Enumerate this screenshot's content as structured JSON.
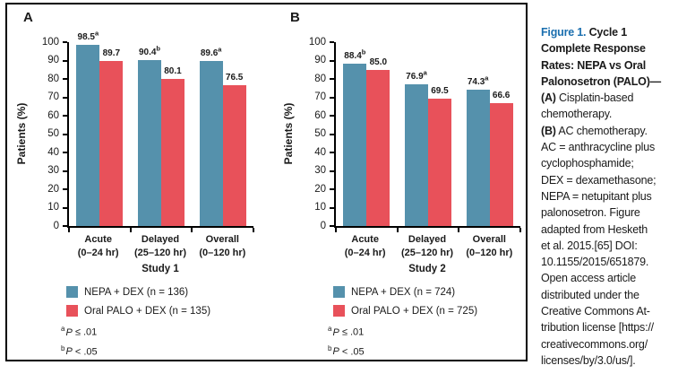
{
  "colors": {
    "nepa_teal": "#5591AC",
    "palo_red": "#E8515A",
    "figure_label_blue": "#1B6FAF",
    "axis_black": "#000000",
    "text": "#1A1A1A"
  },
  "chart_data": [
    {
      "type": "bar",
      "panel_label": "A",
      "ylabel": "Patients (%)",
      "xlabel": "Study 1",
      "ylim": [
        0,
        100
      ],
      "ytick_step": 10,
      "grid": false,
      "legend_position": "below-left",
      "categories": [
        {
          "line1": "Acute",
          "line2": "(0–24 hr)"
        },
        {
          "line1": "Delayed",
          "line2": "(25–120 hr)"
        },
        {
          "line1": "Overall",
          "line2": "(0–120 hr)"
        }
      ],
      "series": [
        {
          "key": "nepa",
          "name": "NEPA + DEX (n = 136)",
          "color": "#5591AC",
          "values": [
            98.5,
            90.4,
            89.6
          ],
          "sig_markers": [
            "a",
            "b",
            "a"
          ]
        },
        {
          "key": "palo",
          "name": "Oral PALO + DEX (n = 135)",
          "color": "#E8515A",
          "values": [
            89.7,
            80.1,
            76.5
          ],
          "sig_markers": [
            "",
            "",
            ""
          ]
        }
      ],
      "footnotes": [
        {
          "marker": "a",
          "variable": "P",
          "condition": "≤ .01"
        },
        {
          "marker": "b",
          "variable": "P",
          "condition": "< .05"
        }
      ]
    },
    {
      "type": "bar",
      "panel_label": "B",
      "ylabel": "Patients (%)",
      "xlabel": "Study 2",
      "ylim": [
        0,
        100
      ],
      "ytick_step": 10,
      "grid": false,
      "legend_position": "below-left",
      "categories": [
        {
          "line1": "Acute",
          "line2": "(0–24 hr)"
        },
        {
          "line1": "Delayed",
          "line2": "(25–120 hr)"
        },
        {
          "line1": "Overall",
          "line2": "(0–120 hr)"
        }
      ],
      "series": [
        {
          "key": "nepa",
          "name": "NEPA + DEX (n = 724)",
          "color": "#5591AC",
          "values": [
            88.4,
            76.9,
            74.3
          ],
          "sig_markers": [
            "b",
            "a",
            "a"
          ]
        },
        {
          "key": "palo",
          "name": "Oral PALO + DEX (n = 725)",
          "color": "#E8515A",
          "values": [
            85.0,
            69.5,
            66.6
          ],
          "sig_markers": [
            "",
            "",
            ""
          ]
        }
      ],
      "footnotes": [
        {
          "marker": "a",
          "variable": "P",
          "condition": "≤ .01"
        },
        {
          "marker": "b",
          "variable": "P",
          "condition": "< .05"
        }
      ]
    }
  ],
  "caption": {
    "lines": [
      [
        {
          "text": "Figure 1.",
          "style": "figure-label"
        },
        {
          "text": " Cycle 1",
          "style": "bold"
        }
      ],
      [
        {
          "text": "Complete Response",
          "style": "bold"
        }
      ],
      [
        {
          "text": "Rates: NEPA vs Oral",
          "style": "bold"
        }
      ],
      [
        {
          "text": "Palonosetron (PALO)—",
          "style": "bold"
        }
      ],
      [
        {
          "text": "(A)",
          "style": "bold"
        },
        {
          "text": " Cisplatin-based",
          "style": "normal"
        }
      ],
      [
        {
          "text": "chemotherapy.",
          "style": "normal"
        }
      ],
      [
        {
          "text": "(B)",
          "style": "bold"
        },
        {
          "text": " AC chemotherapy.",
          "style": "normal"
        }
      ],
      [
        {
          "text": "AC = anthracycline plus",
          "style": "normal"
        }
      ],
      [
        {
          "text": "cyclophosphamide;",
          "style": "normal"
        }
      ],
      [
        {
          "text": "DEX = dexamethasone;",
          "style": "normal"
        }
      ],
      [
        {
          "text": "NEPA = netupitant plus",
          "style": "normal"
        }
      ],
      [
        {
          "text": "palonosetron. Figure",
          "style": "normal"
        }
      ],
      [
        {
          "text": "adapted from Hesketh",
          "style": "normal"
        }
      ],
      [
        {
          "text": "et al. 2015.[65] DOI:",
          "style": "normal"
        }
      ],
      [
        {
          "text": "10.1155/2015/651879.",
          "style": "normal"
        }
      ],
      [
        {
          "text": "Open access article",
          "style": "normal"
        }
      ],
      [
        {
          "text": "distributed under the",
          "style": "normal"
        }
      ],
      [
        {
          "text": "Creative Commons At-",
          "style": "normal"
        }
      ],
      [
        {
          "text": "tribution license [https://",
          "style": "normal"
        }
      ],
      [
        {
          "text": "creativecommons.org/",
          "style": "normal"
        }
      ],
      [
        {
          "text": "licenses/by/3.0/us/].",
          "style": "normal"
        }
      ]
    ]
  }
}
